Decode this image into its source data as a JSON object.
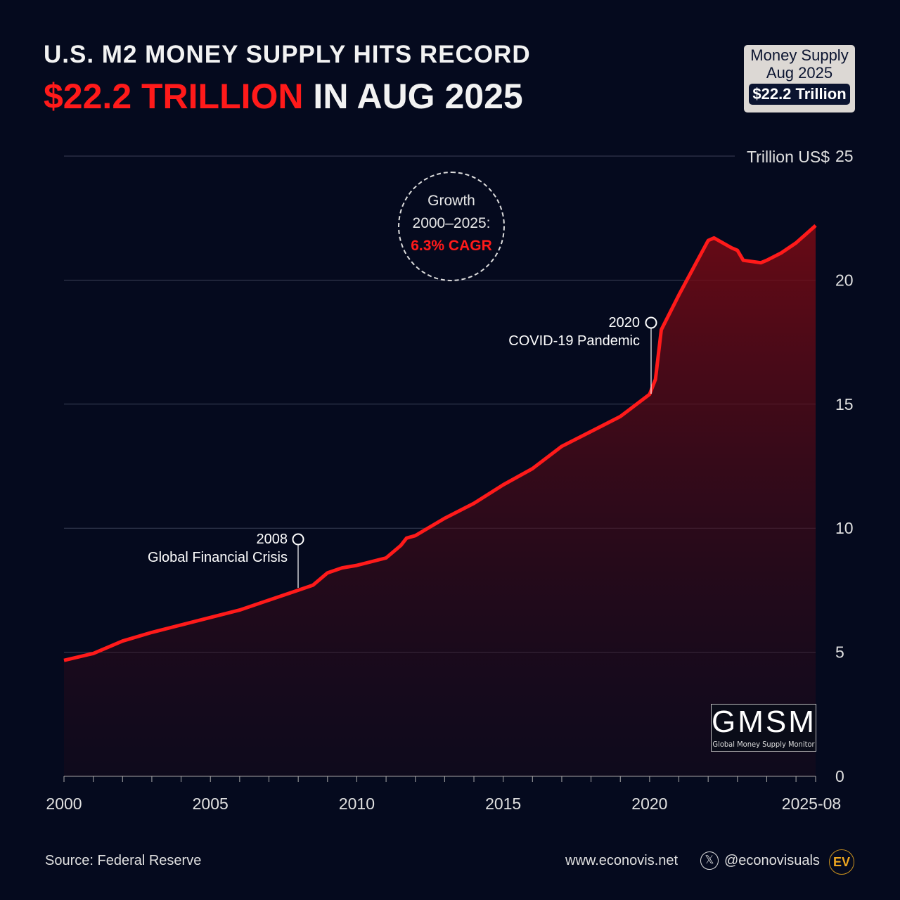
{
  "header": {
    "line1": "U.S. M2 MONEY SUPPLY HITS RECORD",
    "line2_red": "$22.2 TRILLION",
    "line2_white": " IN AUG 2025"
  },
  "badge": {
    "line1": "Money Supply",
    "line2": "Aug 2025",
    "value": "$22.2 Trillion"
  },
  "growth": {
    "line1": "Growth",
    "line2": "2000–2025:",
    "line3": "6.3% CAGR"
  },
  "annotations": [
    {
      "year": "2008",
      "text": "Global Financial Crisis"
    },
    {
      "year": "2020",
      "text": "COVID-19 Pandemic"
    }
  ],
  "logo": {
    "big": "GMSM",
    "small": "Global Money Supply Monitor"
  },
  "footer": {
    "source": "Source: Federal Reserve",
    "site": "www.econovis.net",
    "handle": "@econovisuals",
    "ev": "EV"
  },
  "colors": {
    "line": "#ff1a1a",
    "bg": "#050a1e"
  },
  "chart_data": {
    "type": "area",
    "title": "U.S. M2 Money Supply",
    "ylabel": "Trillion US$",
    "ylim": [
      0,
      25
    ],
    "xlim": [
      2000,
      2025.67
    ],
    "y_ticks": [
      "0",
      "5",
      "10",
      "15",
      "20",
      "25"
    ],
    "x_tick_labels": [
      "2000",
      "2005",
      "2010",
      "2015",
      "2020",
      "2025-08"
    ],
    "x": [
      2000,
      2001,
      2002,
      2003,
      2004,
      2005,
      2006,
      2007,
      2008,
      2008.5,
      2009,
      2009.5,
      2010,
      2011,
      2011.5,
      2011.7,
      2012,
      2013,
      2014,
      2015,
      2016,
      2017,
      2018,
      2019,
      2020,
      2020.2,
      2020.4,
      2021,
      2021.5,
      2022,
      2022.2,
      2022.8,
      2023,
      2023.2,
      2023.8,
      2024,
      2024.5,
      2025,
      2025.67
    ],
    "y": [
      4.67,
      4.95,
      5.45,
      5.8,
      6.1,
      6.4,
      6.7,
      7.1,
      7.5,
      7.7,
      8.2,
      8.4,
      8.5,
      8.8,
      9.3,
      9.6,
      9.7,
      10.4,
      11.0,
      11.75,
      12.4,
      13.3,
      13.9,
      14.5,
      15.4,
      16.0,
      18.0,
      19.4,
      20.5,
      21.6,
      21.7,
      21.3,
      21.2,
      20.8,
      20.7,
      20.8,
      21.1,
      21.5,
      22.2
    ]
  }
}
